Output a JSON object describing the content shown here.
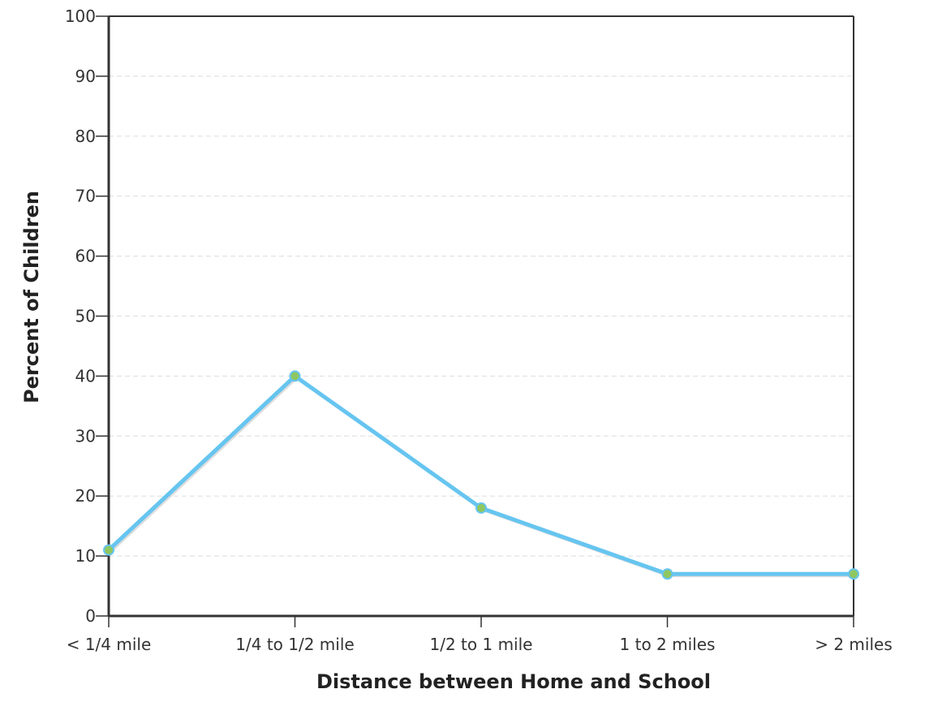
{
  "chart_data": {
    "type": "line",
    "categories": [
      "< 1/4 mile",
      "1/4 to 1/2 mile",
      "1/2 to 1 mile",
      "1 to 2 miles",
      "> 2 miles"
    ],
    "series": [
      {
        "values": [
          11,
          40,
          18,
          7,
          7
        ]
      }
    ],
    "xlabel": "Distance between Home and School",
    "ylabel": "Percent of Children",
    "ylim": [
      0,
      100
    ],
    "yticks": [
      0,
      10,
      20,
      30,
      40,
      50,
      60,
      70,
      80,
      90,
      100
    ],
    "grid": true,
    "line_color": "#66c5f0",
    "marker_fill": "#8fc760",
    "marker_stroke": "#66c5f0"
  }
}
